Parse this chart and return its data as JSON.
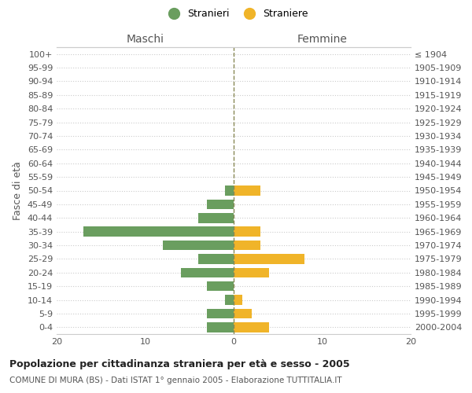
{
  "age_groups": [
    "0-4",
    "5-9",
    "10-14",
    "15-19",
    "20-24",
    "25-29",
    "30-34",
    "35-39",
    "40-44",
    "45-49",
    "50-54",
    "55-59",
    "60-64",
    "65-69",
    "70-74",
    "75-79",
    "80-84",
    "85-89",
    "90-94",
    "95-99",
    "100+"
  ],
  "birth_years": [
    "2000-2004",
    "1995-1999",
    "1990-1994",
    "1985-1989",
    "1980-1984",
    "1975-1979",
    "1970-1974",
    "1965-1969",
    "1960-1964",
    "1955-1959",
    "1950-1954",
    "1945-1949",
    "1940-1944",
    "1935-1939",
    "1930-1934",
    "1925-1929",
    "1920-1924",
    "1915-1919",
    "1910-1914",
    "1905-1909",
    "≤ 1904"
  ],
  "maschi": [
    3,
    3,
    1,
    3,
    6,
    4,
    8,
    17,
    4,
    3,
    1,
    0,
    0,
    0,
    0,
    0,
    0,
    0,
    0,
    0,
    0
  ],
  "femmine": [
    4,
    2,
    1,
    0,
    4,
    8,
    3,
    3,
    0,
    0,
    3,
    0,
    0,
    0,
    0,
    0,
    0,
    0,
    0,
    0,
    0
  ],
  "maschi_color": "#6a9e5f",
  "femmine_color": "#f0b429",
  "xlim": 20,
  "title": "Popolazione per cittadinanza straniera per età e sesso - 2005",
  "subtitle": "COMUNE DI MURA (BS) - Dati ISTAT 1° gennaio 2005 - Elaborazione TUTTITALIA.IT",
  "ylabel_left": "Fasce di età",
  "legend_stranieri": "Stranieri",
  "legend_straniere": "Straniere",
  "maschi_label": "Maschi",
  "femmine_label": "Femmine",
  "bg_color": "#ffffff",
  "grid_color": "#cccccc",
  "zero_line_color": "#888855"
}
